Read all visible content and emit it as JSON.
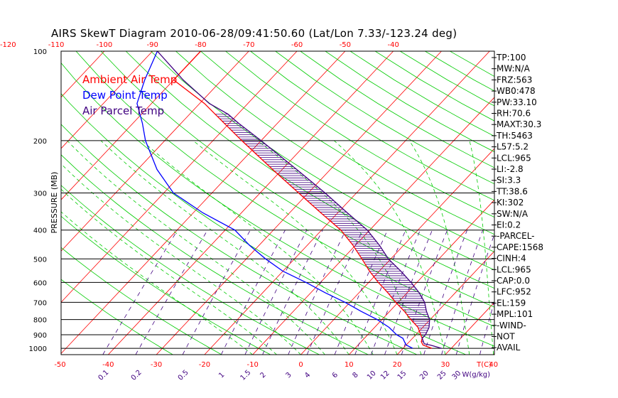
{
  "chart_data": {
    "type": "line",
    "title": "AIRS SkewT Diagram 2010-06-28/09:41:50.60 (Lat/Lon 7.33/-123.24 deg)",
    "ylabel": "PRESSURE (MB)",
    "x_unit_label": "T(C)",
    "mixing_ratio_unit_label": "W(g/kg)",
    "pressure_ticks": [
      100,
      200,
      300,
      400,
      500,
      600,
      700,
      800,
      900,
      1000
    ],
    "top_temperature_ticks": [
      -120,
      -110,
      -100,
      -90,
      -80,
      -70,
      -60,
      -50,
      -40
    ],
    "bottom_temperature_ticks": [
      -50,
      -40,
      -30,
      -20,
      -10,
      0,
      10,
      20,
      30,
      40
    ],
    "mixing_ratio_labels": [
      "0.1",
      "0.2",
      "0.5",
      "1",
      "1.5",
      "2",
      "3",
      "4",
      "6",
      "8",
      "10",
      "12",
      "15",
      "20",
      "25",
      "30",
      "40"
    ],
    "legend": [
      {
        "name": "Ambient Air Temp",
        "color": "#ff0000"
      },
      {
        "name": "Dew Point Temp",
        "color": "#0000ff"
      },
      {
        "name": "Air Parcel Temp",
        "color": "#400080"
      }
    ],
    "colors": {
      "isotherm": "#ff0000",
      "dry_adiabat": "#00cc00",
      "moist_adiabat": "#00cc00",
      "mixing_ratio": "#400080",
      "isobar": "#000000",
      "cape_hatch": "#400080"
    },
    "series": [
      {
        "name": "Ambient Air Temp",
        "color": "#ff0000",
        "points": [
          [
            1000,
            26.0
          ],
          [
            975,
            23.5
          ],
          [
            950,
            22.5
          ],
          [
            925,
            22.0
          ],
          [
            900,
            21.0
          ],
          [
            850,
            19.0
          ],
          [
            800,
            16.0
          ],
          [
            750,
            13.0
          ],
          [
            700,
            9.5
          ],
          [
            650,
            6.0
          ],
          [
            600,
            2.0
          ],
          [
            550,
            -2.0
          ],
          [
            500,
            -6.0
          ],
          [
            450,
            -10.5
          ],
          [
            400,
            -16.0
          ],
          [
            350,
            -23.5
          ],
          [
            300,
            -32.0
          ],
          [
            250,
            -42.0
          ],
          [
            200,
            -54.0
          ],
          [
            175,
            -61.0
          ],
          [
            150,
            -69.0
          ],
          [
            125,
            -80.0
          ],
          [
            100,
            -80.0
          ]
        ]
      },
      {
        "name": "Dew Point Temp",
        "color": "#0000ff",
        "points": [
          [
            1000,
            22.0
          ],
          [
            975,
            20.0
          ],
          [
            950,
            19.0
          ],
          [
            925,
            18.0
          ],
          [
            900,
            16.0
          ],
          [
            850,
            13.0
          ],
          [
            800,
            9.0
          ],
          [
            750,
            4.0
          ],
          [
            700,
            -1.0
          ],
          [
            650,
            -7.0
          ],
          [
            600,
            -13.0
          ],
          [
            550,
            -20.0
          ],
          [
            500,
            -26.0
          ],
          [
            450,
            -32.0
          ],
          [
            400,
            -38.0
          ],
          [
            350,
            -48.0
          ],
          [
            300,
            -58.0
          ],
          [
            250,
            -66.0
          ],
          [
            200,
            -74.0
          ],
          [
            175,
            -78.0
          ],
          [
            150,
            -83.0
          ],
          [
            125,
            -86.0
          ],
          [
            100,
            -89.0
          ]
        ]
      },
      {
        "name": "Air Parcel Temp",
        "color": "#400080",
        "points": [
          [
            1000,
            28.0
          ],
          [
            975,
            25.0
          ],
          [
            965,
            23.5
          ],
          [
            925,
            22.0
          ],
          [
            900,
            22.0
          ],
          [
            850,
            21.3
          ],
          [
            800,
            19.9
          ],
          [
            750,
            17.6
          ],
          [
            700,
            15.5
          ],
          [
            650,
            12.5
          ],
          [
            600,
            8.8
          ],
          [
            550,
            4.5
          ],
          [
            500,
            -0.5
          ],
          [
            450,
            -5.0
          ],
          [
            400,
            -10.5
          ],
          [
            350,
            -18.0
          ],
          [
            300,
            -26.5
          ],
          [
            250,
            -37.0
          ],
          [
            200,
            -50.0
          ],
          [
            175,
            -58.0
          ],
          [
            163,
            -62.0
          ],
          [
            150,
            -68.0
          ],
          [
            125,
            -78.0
          ],
          [
            100,
            -89.0
          ]
        ]
      }
    ],
    "indices": [
      "TP:100",
      "MW:N/A",
      "FRZ:563",
      "WB0:478",
      "PW:33.10",
      "RH:70.6",
      "MAXT:30.3",
      "TH:5463",
      "L57:5.2",
      "LCL:965",
      "LI:-2.8",
      "SI:3.3",
      "TT:38.6",
      "KI:302",
      "SW:N/A",
      "EI:0.2",
      "-PARCEL-",
      "CAPE:1568",
      "CINH:4",
      "LCL:965",
      "CAP:0.0",
      "LFC:952",
      "EL:159",
      "MPL:101",
      "-WIND-",
      "NOT",
      "AVAIL"
    ]
  }
}
